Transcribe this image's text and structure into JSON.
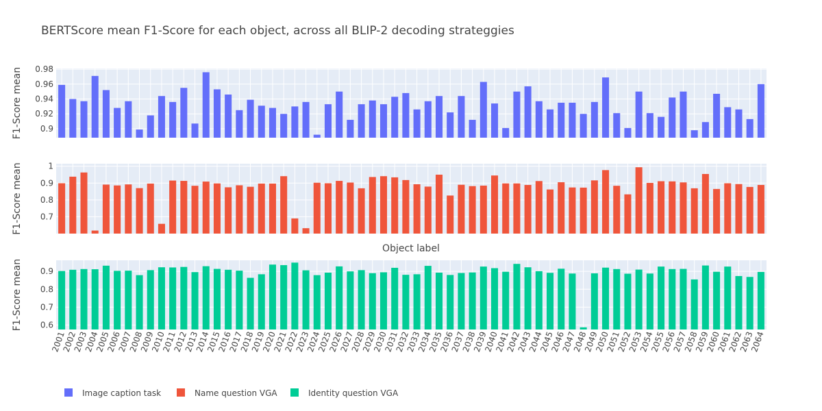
{
  "chart_data": {
    "type": "bar",
    "title": "BERTScore mean F1-Score for each object, across all BLIP-2 decoding strateggies",
    "xlabel": "Object label",
    "ylabel": "F1-Score mean",
    "categories": [
      "2001",
      "2002",
      "2003",
      "2004",
      "2005",
      "2006",
      "2007",
      "2008",
      "2009",
      "2010",
      "2011",
      "2012",
      "2013",
      "2014",
      "2015",
      "2016",
      "2017",
      "2018",
      "2019",
      "2020",
      "2021",
      "2022",
      "2023",
      "2024",
      "2025",
      "2026",
      "2027",
      "2028",
      "2029",
      "2030",
      "2031",
      "2032",
      "2033",
      "2034",
      "2035",
      "2036",
      "2037",
      "2038",
      "2039",
      "2040",
      "2041",
      "2042",
      "2043",
      "2044",
      "2045",
      "2046",
      "2047",
      "2048",
      "2049",
      "2050",
      "2051",
      "2052",
      "2053",
      "2054",
      "2055",
      "2056",
      "2057",
      "2058",
      "2059",
      "2060",
      "2061",
      "2062",
      "2063",
      "2064"
    ],
    "legend_position": "bottom-left",
    "grid": true,
    "series": [
      {
        "name": "Image caption task",
        "color": "#636efa",
        "ylim": [
          0.888,
          0.981
        ],
        "yticks": [
          0.9,
          0.92,
          0.94,
          0.96,
          0.98
        ],
        "values": [
          0.959,
          0.94,
          0.937,
          0.971,
          0.952,
          0.928,
          0.937,
          0.899,
          0.918,
          0.944,
          0.936,
          0.955,
          0.907,
          0.976,
          0.953,
          0.946,
          0.925,
          0.939,
          0.931,
          0.928,
          0.92,
          0.93,
          0.936,
          0.892,
          0.933,
          0.95,
          0.912,
          0.933,
          0.938,
          0.933,
          0.943,
          0.948,
          0.926,
          0.937,
          0.944,
          0.922,
          0.944,
          0.912,
          0.963,
          0.934,
          0.901,
          0.95,
          0.957,
          0.937,
          0.926,
          0.935,
          0.935,
          0.92,
          0.936,
          0.969,
          0.921,
          0.901,
          0.95,
          0.921,
          0.916,
          0.942,
          0.95,
          0.898,
          0.909,
          0.947,
          0.929,
          0.926,
          0.913,
          0.96
        ]
      },
      {
        "name": "Name question VGA",
        "color": "#ef553b",
        "ylim": [
          0.6,
          1.015
        ],
        "yticks": [
          0.7,
          0.8,
          0.9,
          1
        ],
        "ytick_labels": [
          "0.7",
          "0.8",
          "0.9",
          "1"
        ],
        "values": [
          0.899,
          0.938,
          0.963,
          0.618,
          0.891,
          0.886,
          0.892,
          0.87,
          0.897,
          0.658,
          0.915,
          0.913,
          0.884,
          0.909,
          0.898,
          0.875,
          0.887,
          0.878,
          0.897,
          0.897,
          0.941,
          0.69,
          0.632,
          0.902,
          0.899,
          0.913,
          0.903,
          0.869,
          0.936,
          0.941,
          0.934,
          0.918,
          0.893,
          0.879,
          0.95,
          0.826,
          0.89,
          0.882,
          0.885,
          0.945,
          0.898,
          0.898,
          0.889,
          0.912,
          0.862,
          0.905,
          0.874,
          0.873,
          0.916,
          0.977,
          0.884,
          0.833,
          0.994,
          0.901,
          0.911,
          0.91,
          0.904,
          0.869,
          0.954,
          0.865,
          0.899,
          0.894,
          0.877,
          0.889
        ]
      },
      {
        "name": "Identity question VGA",
        "color": "#00cc96",
        "ylim": [
          0.575,
          0.962
        ],
        "yticks": [
          0.6,
          0.7,
          0.8,
          0.9
        ],
        "values": [
          0.902,
          0.909,
          0.913,
          0.912,
          0.932,
          0.903,
          0.904,
          0.879,
          0.907,
          0.923,
          0.922,
          0.925,
          0.896,
          0.929,
          0.914,
          0.909,
          0.904,
          0.864,
          0.884,
          0.938,
          0.935,
          0.949,
          0.906,
          0.879,
          0.893,
          0.928,
          0.9,
          0.907,
          0.89,
          0.895,
          0.92,
          0.881,
          0.884,
          0.931,
          0.893,
          0.88,
          0.891,
          0.894,
          0.927,
          0.918,
          0.898,
          0.942,
          0.923,
          0.901,
          0.892,
          0.915,
          0.888,
          0.587,
          0.889,
          0.921,
          0.913,
          0.887,
          0.91,
          0.888,
          0.927,
          0.913,
          0.914,
          0.855,
          0.933,
          0.898,
          0.927,
          0.874,
          0.869,
          0.897
        ]
      }
    ]
  }
}
